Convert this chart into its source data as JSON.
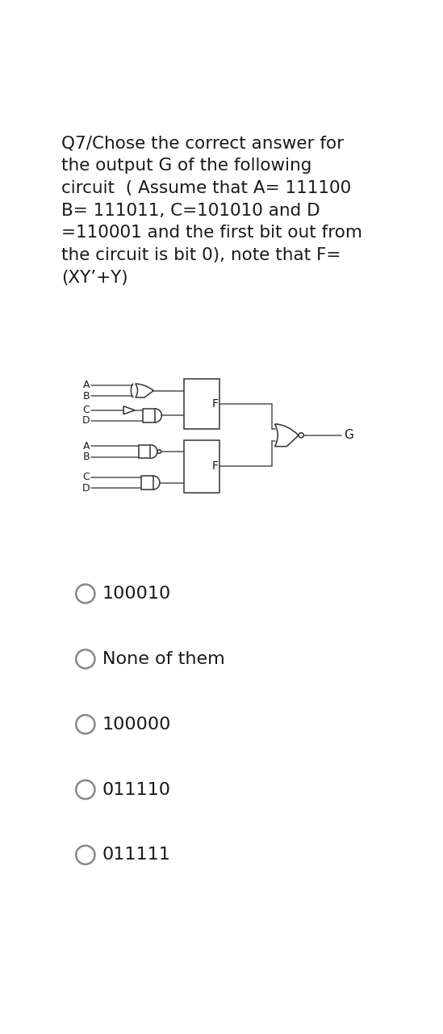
{
  "title_lines": [
    "Q7/Chose the correct answer for",
    "the output G of the following",
    "circuit  ( Assume that A= 111100",
    "B= 111011, C=101010 and D",
    "=110001 and the first bit out from",
    "the circuit is bit 0), note that F=",
    "(XY’+Y)"
  ],
  "options": [
    "100010",
    "None of them",
    "100000",
    "011110",
    "011111"
  ],
  "bg_color": "#ffffff",
  "text_color": "#1a1a1a",
  "gate_color": "#333333",
  "line_color": "#555555",
  "title_fontsize": 15.5,
  "option_fontsize": 16,
  "circuit_fontsize": 9
}
